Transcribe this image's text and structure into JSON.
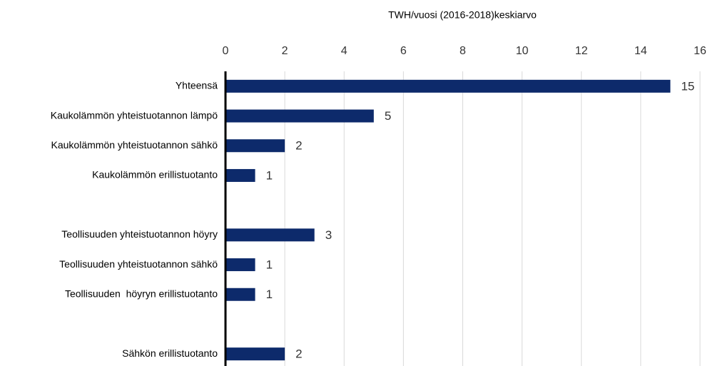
{
  "chart_data": {
    "type": "hbar",
    "title": "TWH/vuosi (2016-2018)keskiarvo",
    "categories": [
      "Yhteensä",
      "Kaukolämmön yhteistuotannon lämpö",
      "Kaukolämmön yhteistuotannon sähkö",
      "Kaukolämmön erillistuotanto",
      null,
      "Teollisuuden yhteistuotannon höyry",
      "Teollisuuden yhteistuotannon sähkö",
      "Teollisuuden  höyryn erillistuotanto",
      null,
      "Sähkön erillistuotanto"
    ],
    "values": [
      15,
      5,
      2,
      1,
      null,
      3,
      1,
      1,
      null,
      2
    ],
    "color": "#0d2a6b",
    "xlim": [
      0,
      16
    ],
    "xticks": [
      0,
      2,
      4,
      6,
      8,
      10,
      12,
      14,
      16
    ],
    "grid": true
  }
}
